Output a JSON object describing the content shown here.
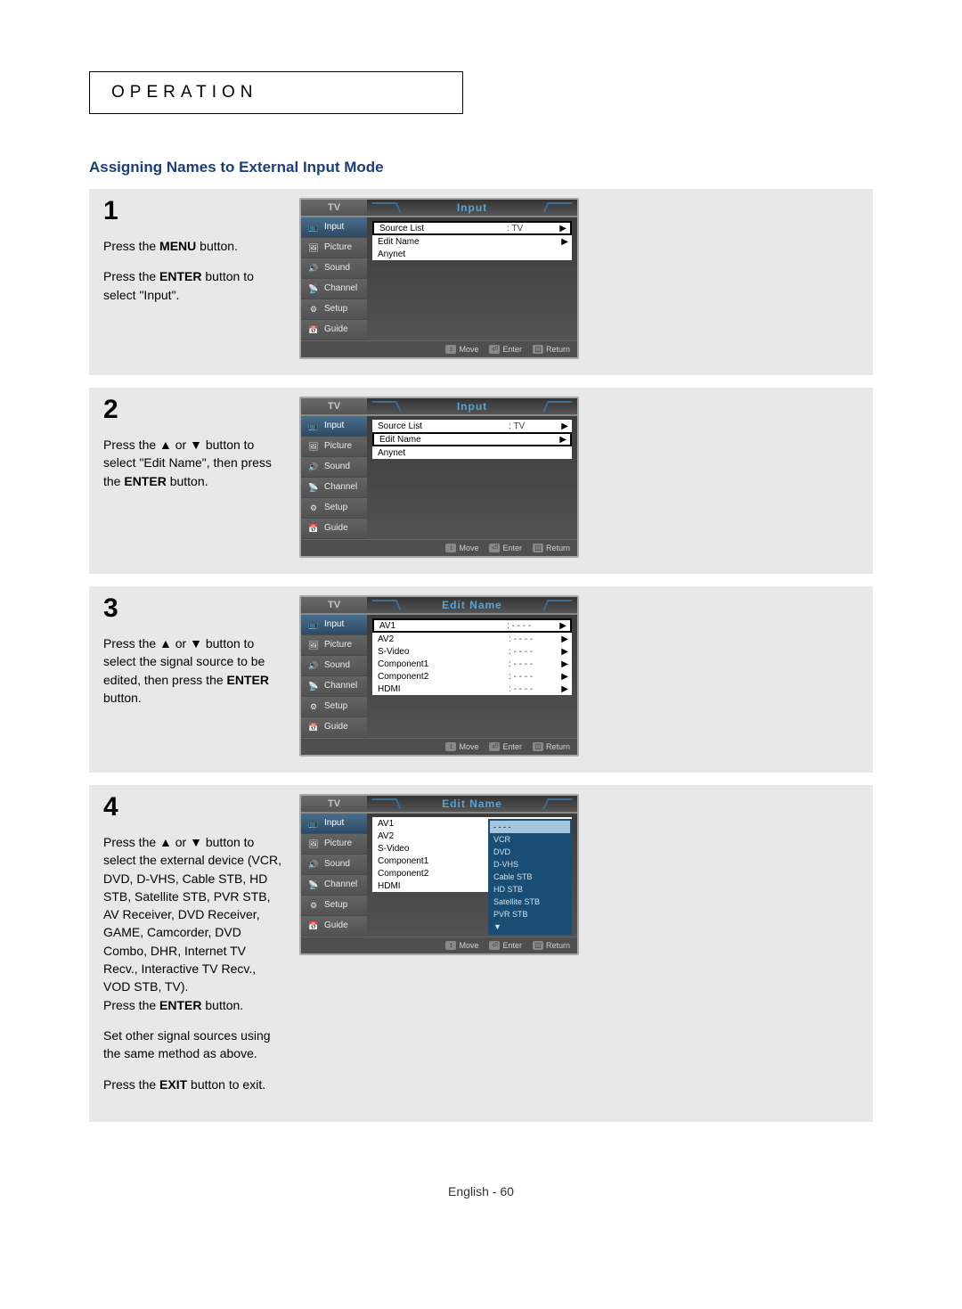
{
  "page": {
    "header": "OPERATION",
    "section_title": "Assigning Names to External Input Mode",
    "footer": "English - 60"
  },
  "sidebar_items": [
    {
      "label": "Input"
    },
    {
      "label": "Picture"
    },
    {
      "label": "Sound"
    },
    {
      "label": "Channel"
    },
    {
      "label": "Setup"
    },
    {
      "label": "Guide"
    }
  ],
  "foot_items": [
    {
      "icon": "↕",
      "label": "Move"
    },
    {
      "icon": "⏎",
      "label": "Enter"
    },
    {
      "icon": "◫",
      "label": "Return"
    }
  ],
  "tv_label": "TV",
  "steps": [
    {
      "num": "1",
      "lines": [
        "Press the <b>MENU</b> button.",
        "Press the <b>ENTER</b> button to select \"Input\"."
      ],
      "mock": {
        "title": "Input",
        "active_side": 0,
        "rows": [
          {
            "type": "sel",
            "label": "Source List",
            "val": ": TV",
            "arr": "▶"
          },
          {
            "type": "plain",
            "label": "Edit Name",
            "val": "",
            "arr": "▶"
          },
          {
            "type": "plain",
            "label": "Anynet",
            "val": "",
            "arr": ""
          }
        ]
      }
    },
    {
      "num": "2",
      "lines": [
        "Press the ▲ or ▼ button to select \"Edit Name\", then press the <b>ENTER</b> button."
      ],
      "mock": {
        "title": "Input",
        "active_side": 0,
        "rows": [
          {
            "type": "plain",
            "label": "Source List",
            "val": ": TV",
            "arr": "▶"
          },
          {
            "type": "sel",
            "label": "Edit Name",
            "val": "",
            "arr": "▶"
          },
          {
            "type": "plain",
            "label": "Anynet",
            "val": "",
            "arr": ""
          }
        ]
      }
    },
    {
      "num": "3",
      "lines": [
        "Press the ▲ or ▼ button to select the signal source to be edited, then press the <b>ENTER</b> button."
      ],
      "mock": {
        "title": "Edit Name",
        "active_side": 0,
        "rows": [
          {
            "type": "sel",
            "label": "AV1",
            "val": ": - - - -",
            "arr": "▶"
          },
          {
            "type": "plain",
            "label": "AV2",
            "val": ": - - - -",
            "arr": "▶"
          },
          {
            "type": "plain",
            "label": "S-Video",
            "val": ": - - - -",
            "arr": "▶"
          },
          {
            "type": "plain",
            "label": "Component1",
            "val": ": - - - -",
            "arr": "▶"
          },
          {
            "type": "plain",
            "label": "Component2",
            "val": ": - - - -",
            "arr": "▶"
          },
          {
            "type": "plain",
            "label": "HDMI",
            "val": ": - - - -",
            "arr": "▶"
          }
        ]
      }
    },
    {
      "num": "4",
      "lines": [
        "Press the ▲ or ▼ button to select the external device (VCR, DVD, D-VHS, Cable STB, HD STB, Satellite STB, PVR STB, AV Receiver, DVD Receiver, GAME, Camcorder, DVD Combo, DHR, Internet TV Recv., Interactive TV Recv., VOD STB, TV).<br>Press the <b>ENTER</b> button.",
        "Set other signal sources using the same method as above.",
        "Press the <b>EXIT</b> button to exit."
      ],
      "mock": {
        "title": "Edit Name",
        "active_side": 0,
        "rows": [
          {
            "type": "plain",
            "label": "AV1",
            "val": ":",
            "arr": ""
          },
          {
            "type": "plain",
            "label": "AV2",
            "val": ":",
            "arr": ""
          },
          {
            "type": "plain",
            "label": "S-Video",
            "val": ":",
            "arr": ""
          },
          {
            "type": "plain",
            "label": "Component1",
            "val": ":",
            "arr": ""
          },
          {
            "type": "plain",
            "label": "Component2",
            "val": ":",
            "arr": ""
          },
          {
            "type": "plain",
            "label": "HDMI",
            "val": ":",
            "arr": ""
          }
        ],
        "popup": [
          {
            "label": "- - - -",
            "selected": true
          },
          {
            "label": "VCR"
          },
          {
            "label": "DVD"
          },
          {
            "label": "D-VHS"
          },
          {
            "label": "Cable STB"
          },
          {
            "label": "HD STB"
          },
          {
            "label": "Satellite STB"
          },
          {
            "label": "PVR STB"
          },
          {
            "label": "▼"
          }
        ]
      }
    }
  ],
  "colors": {
    "section_title": "#1a3e7a",
    "step_bg": "#e8e8e8",
    "tv_border": "#a8a8a8",
    "tv_body": "#525252",
    "tv_title": "#5aa3d4",
    "popup_bg": "#1a4d73",
    "popup_text": "#cfe3f1",
    "popup_sel_bg": "#a3c5de"
  }
}
